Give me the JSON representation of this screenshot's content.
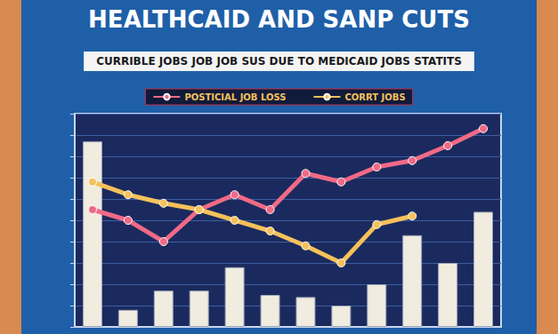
{
  "chart_data": {
    "type": "bar",
    "title": "HEALTHCAID AND SANP CUTS",
    "subtitle": "CURRIBLE JOBS JOB JOB SUS DUE TO MEDICAID JOBS STATITS",
    "categories": [
      null,
      null,
      null,
      null,
      null,
      null,
      null,
      null,
      null,
      null,
      null,
      null
    ],
    "values": [
      87,
      8,
      17,
      17,
      28,
      15,
      14,
      10,
      20,
      43,
      30,
      54
    ],
    "color": "#f1ece0",
    "series": [
      {
        "name": "POSTICIAL JOB LOSS",
        "type": "line",
        "color": "#f06a86",
        "values": [
          55,
          50,
          40,
          55,
          62,
          55,
          72,
          68,
          75,
          78,
          85,
          93
        ]
      },
      {
        "name": "CORRT JOBS",
        "type": "line",
        "color": "#f5c15a",
        "values": [
          68,
          62,
          58,
          55,
          50,
          45,
          38,
          30,
          48,
          52,
          null,
          null
        ]
      }
    ],
    "ylim": [
      0,
      100
    ],
    "yticks": [
      0,
      10,
      20,
      30,
      40,
      50,
      60,
      70,
      80,
      90,
      100
    ],
    "grid": true,
    "legend": "top",
    "tick_labels": false
  }
}
